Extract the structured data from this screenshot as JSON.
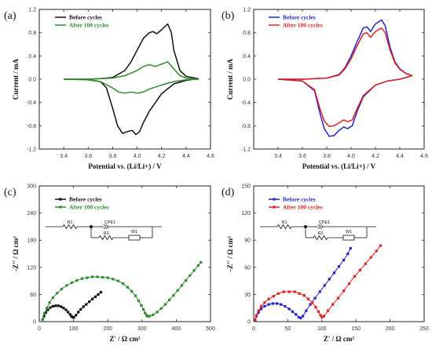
{
  "chart_data": [
    {
      "panel": "(a)",
      "type": "line",
      "xlabel": "Potential vs. (Li/Li+) / V",
      "ylabel": "Current / mA",
      "xlim": [
        3.2,
        4.6
      ],
      "ylim": [
        -1.2,
        1.2
      ],
      "xticks": [
        "3.4",
        "3.6",
        "3.8",
        "4.0",
        "4.2",
        "4.4",
        "4.6"
      ],
      "yticks": [
        "-1.2",
        "-0.8",
        "-0.4",
        "0.0",
        "0.4",
        "0.8",
        "1.2"
      ],
      "legend_position": "top-left",
      "series": [
        {
          "name": "Before cycles",
          "color": "#111111",
          "x": [
            3.4,
            3.5,
            3.6,
            3.7,
            3.8,
            3.9,
            3.95,
            4.0,
            4.05,
            4.1,
            4.13,
            4.16,
            4.2,
            4.25,
            4.28,
            4.3,
            4.35,
            4.4,
            4.5,
            4.5,
            4.4,
            4.3,
            4.2,
            4.1,
            4.05,
            4.02,
            3.99,
            3.96,
            3.92,
            3.88,
            3.84,
            3.8,
            3.75,
            3.7,
            3.6,
            3.5,
            3.4,
            3.4
          ],
          "y": [
            0.0,
            0.0,
            0.0,
            0.01,
            0.03,
            0.15,
            0.3,
            0.5,
            0.7,
            0.8,
            0.82,
            0.78,
            0.85,
            0.95,
            0.8,
            0.5,
            0.15,
            0.05,
            0.01,
            0.01,
            -0.02,
            -0.08,
            -0.25,
            -0.55,
            -0.75,
            -0.9,
            -0.95,
            -0.88,
            -0.9,
            -0.93,
            -0.8,
            -0.5,
            -0.15,
            -0.04,
            -0.01,
            0.0,
            0.0,
            0.0
          ]
        },
        {
          "name": "After 100 cycles",
          "color": "#2e8b2e",
          "x": [
            3.4,
            3.6,
            3.8,
            3.9,
            4.0,
            4.05,
            4.1,
            4.15,
            4.2,
            4.25,
            4.3,
            4.35,
            4.4,
            4.5,
            4.5,
            4.4,
            4.3,
            4.2,
            4.1,
            4.05,
            4.0,
            3.95,
            3.9,
            3.85,
            3.8,
            3.7,
            3.6,
            3.4,
            3.4
          ],
          "y": [
            0.0,
            0.0,
            0.02,
            0.06,
            0.15,
            0.22,
            0.25,
            0.22,
            0.26,
            0.3,
            0.18,
            0.06,
            0.02,
            0.0,
            0.0,
            -0.01,
            -0.04,
            -0.1,
            -0.17,
            -0.22,
            -0.24,
            -0.22,
            -0.24,
            -0.22,
            -0.15,
            -0.04,
            -0.01,
            0.0,
            0.0
          ]
        }
      ]
    },
    {
      "panel": "(b)",
      "type": "line",
      "xlabel": "Potential vs. (Li/Li+) / V",
      "ylabel": "Current / mA",
      "xlim": [
        3.2,
        4.6
      ],
      "ylim": [
        -1.2,
        1.2
      ],
      "xticks": [
        "3.4",
        "3.6",
        "3.8",
        "4.0",
        "4.2",
        "4.4",
        "4.6"
      ],
      "yticks": [
        "-1.2",
        "-0.8",
        "-0.4",
        "0.0",
        "0.4",
        "0.8",
        "1.2"
      ],
      "legend_position": "top-left",
      "series": [
        {
          "name": "Before cycles",
          "color": "#2323c8",
          "x": [
            3.4,
            3.6,
            3.8,
            3.9,
            3.95,
            4.0,
            4.05,
            4.1,
            4.13,
            4.16,
            4.2,
            4.25,
            4.28,
            4.32,
            4.36,
            4.4,
            4.45,
            4.5,
            4.5,
            4.45,
            4.4,
            4.3,
            4.2,
            4.1,
            4.05,
            4.01,
            3.97,
            3.94,
            3.9,
            3.86,
            3.82,
            3.78,
            3.74,
            3.7,
            3.6,
            3.4,
            3.4
          ],
          "y": [
            0.0,
            0.0,
            0.02,
            0.08,
            0.2,
            0.4,
            0.65,
            0.88,
            0.9,
            0.82,
            0.95,
            1.02,
            0.92,
            0.55,
            0.3,
            0.18,
            0.1,
            0.06,
            0.06,
            0.03,
            0.0,
            -0.03,
            -0.1,
            -0.3,
            -0.55,
            -0.8,
            -0.85,
            -0.82,
            -0.88,
            -0.97,
            -0.98,
            -0.85,
            -0.55,
            -0.2,
            -0.03,
            0.0,
            0.0
          ]
        },
        {
          "name": "After 100 cycles",
          "color": "#e02020",
          "x": [
            3.4,
            3.6,
            3.8,
            3.9,
            3.95,
            4.0,
            4.05,
            4.1,
            4.13,
            4.16,
            4.2,
            4.25,
            4.28,
            4.32,
            4.36,
            4.4,
            4.45,
            4.5,
            4.5,
            4.45,
            4.4,
            4.3,
            4.2,
            4.1,
            4.05,
            4.01,
            3.97,
            3.94,
            3.9,
            3.86,
            3.82,
            3.78,
            3.74,
            3.7,
            3.6,
            3.4,
            3.4
          ],
          "y": [
            0.0,
            0.0,
            0.02,
            0.07,
            0.18,
            0.35,
            0.58,
            0.78,
            0.8,
            0.72,
            0.82,
            0.88,
            0.8,
            0.5,
            0.28,
            0.17,
            0.1,
            0.06,
            0.06,
            0.03,
            0.0,
            -0.03,
            -0.1,
            -0.28,
            -0.5,
            -0.7,
            -0.73,
            -0.7,
            -0.75,
            -0.8,
            -0.81,
            -0.72,
            -0.48,
            -0.18,
            -0.03,
            0.0,
            0.0
          ]
        }
      ]
    },
    {
      "panel": "(c)",
      "type": "scatter",
      "xlabel": "Z' / Ω cm²",
      "ylabel": "-Z'' / Ω cm²",
      "xlim": [
        0,
        500
      ],
      "ylim": [
        0,
        300
      ],
      "xticks": [
        "0",
        "100",
        "200",
        "300",
        "400",
        "500"
      ],
      "yticks": [
        "0",
        "60",
        "120",
        "180",
        "240",
        "300"
      ],
      "legend_position": "top-left",
      "series": [
        {
          "name": "Before cycles",
          "color": "#111111",
          "marker": "square",
          "x": [
            10,
            14,
            19,
            25,
            32,
            40,
            48,
            56,
            64,
            71,
            78,
            84,
            90,
            94,
            97,
            101,
            107,
            114,
            121,
            129,
            137,
            146,
            155,
            164,
            172,
            180
          ],
          "y": [
            5,
            12,
            20,
            26,
            31,
            34,
            35,
            35,
            33,
            30,
            26,
            21,
            16,
            12,
            10,
            9,
            14,
            21,
            27,
            33,
            38,
            44,
            50,
            55,
            60,
            65
          ]
        },
        {
          "name": "After 100 cycles",
          "color": "#2e8b2e",
          "marker": "square",
          "x": [
            10,
            15,
            22,
            30,
            40,
            52,
            65,
            80,
            95,
            110,
            125,
            140,
            155,
            170,
            185,
            200,
            215,
            230,
            245,
            258,
            270,
            281,
            290,
            298,
            304,
            309,
            313,
            316,
            322,
            332,
            344,
            356,
            368,
            380,
            392,
            404,
            416,
            428,
            440,
            452,
            464,
            472
          ],
          "y": [
            5,
            18,
            30,
            42,
            53,
            63,
            72,
            80,
            86,
            91,
            95,
            97,
            99,
            99,
            98,
            97,
            94,
            90,
            84,
            76,
            67,
            57,
            46,
            36,
            27,
            19,
            14,
            12,
            12,
            15,
            21,
            29,
            38,
            48,
            58,
            69,
            80,
            91,
            102,
            113,
            124,
            131
          ]
        }
      ]
    },
    {
      "panel": "(d)",
      "type": "scatter",
      "xlabel": "Z' / Ω cm²",
      "ylabel": "-Z'' / Ω cm²",
      "xlim": [
        0,
        250
      ],
      "ylim": [
        0,
        150
      ],
      "xticks": [
        "0",
        "50",
        "100",
        "150",
        "200",
        "250"
      ],
      "yticks": [
        "0",
        "30",
        "60",
        "90",
        "120",
        "150"
      ],
      "legend_position": "top-left",
      "series": [
        {
          "name": "Before cycles",
          "color": "#2323c8",
          "marker": "square",
          "x": [
            2,
            4,
            7,
            11,
            16,
            22,
            28,
            34,
            40,
            46,
            52,
            57,
            62,
            66,
            69,
            72,
            77,
            83,
            90,
            97,
            104,
            111,
            118,
            125,
            132,
            138,
            142
          ],
          "y": [
            2,
            6,
            10,
            14,
            17,
            19,
            20,
            20,
            19,
            17,
            14,
            11,
            8,
            5,
            4,
            6,
            12,
            19,
            26,
            33,
            40,
            47,
            54,
            61,
            68,
            75,
            81
          ]
        },
        {
          "name": "After 100 cycles",
          "color": "#e02020",
          "marker": "square",
          "x": [
            2,
            4,
            7,
            11,
            16,
            22,
            29,
            36,
            44,
            52,
            60,
            67,
            74,
            80,
            86,
            91,
            95,
            98,
            100,
            103,
            109,
            116,
            124,
            132,
            140,
            148,
            156,
            164,
            172,
            180,
            186
          ],
          "y": [
            2,
            7,
            12,
            17,
            21,
            25,
            28,
            31,
            33,
            33,
            33,
            31,
            29,
            25,
            21,
            16,
            11,
            7,
            5,
            6,
            12,
            19,
            26,
            34,
            42,
            50,
            57,
            64,
            71,
            78,
            84
          ]
        }
      ]
    }
  ],
  "circuit": {
    "r1": "R1",
    "cpe1": "CPE1",
    "r2": "R2",
    "w1": "W1"
  }
}
